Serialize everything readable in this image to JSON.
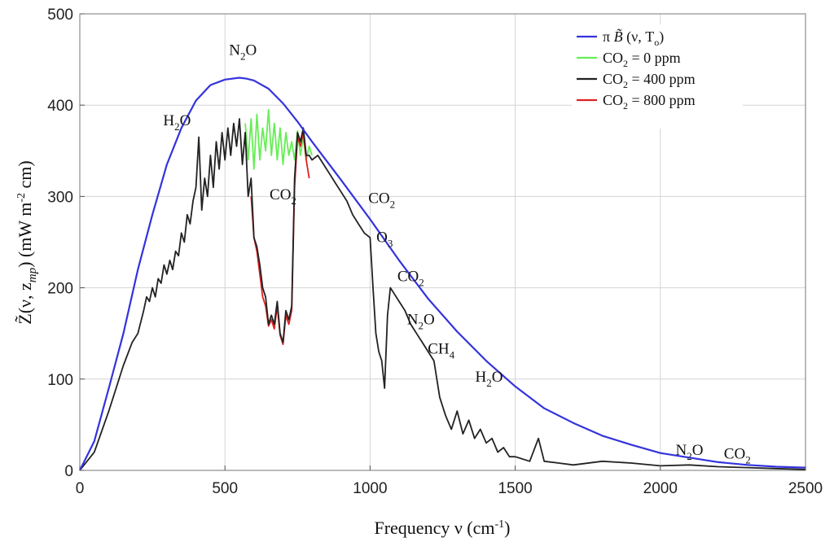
{
  "chart_data": {
    "type": "line",
    "xlabel_main": "Frequency ν (cm",
    "xlabel_sup": "-1",
    "xlabel_close": ")",
    "ylabel": "Z̃(ν, z_mp) (mW m⁻² cm)",
    "ylabel_parts": {
      "z": "Z̃(ν, z",
      "sub": "mp",
      "rest": ") (mW m",
      "sup": "-2",
      "end": " cm)"
    },
    "xlim": [
      0,
      2500
    ],
    "ylim": [
      0,
      500
    ],
    "xticks": [
      0,
      500,
      1000,
      1500,
      2000,
      2500
    ],
    "yticks": [
      0,
      100,
      200,
      300,
      400,
      500
    ],
    "colors": {
      "planck": "#3333dd",
      "co2_0": "#66ee55",
      "co2_400": "#222222",
      "co2_800": "#dd2222"
    },
    "legend": {
      "position": "top-right",
      "entries": [
        {
          "key": "planck",
          "label_a": "π ",
          "label_b": "B̃",
          "label_c": " (ν, T",
          "label_sub": "o",
          "label_d": ")"
        },
        {
          "key": "co2_0",
          "label_a": "CO",
          "label_sub": "2",
          "label_d": " = 0 ppm"
        },
        {
          "key": "co2_400",
          "label_a": "CO",
          "label_sub": "2",
          "label_d": " = 400 ppm"
        },
        {
          "key": "co2_800",
          "label_a": "CO",
          "label_sub": "2",
          "label_d": " = 800 ppm"
        }
      ]
    },
    "annotations": [
      {
        "base": "N",
        "sub": "2",
        "tail": "O",
        "x": 562,
        "y": 455
      },
      {
        "base": "H",
        "sub": "2",
        "tail": "O",
        "x": 335,
        "y": 378
      },
      {
        "base": "CO",
        "sub": "2",
        "tail": "",
        "x": 700,
        "y": 297
      },
      {
        "base": "CO",
        "sub": "2",
        "tail": "",
        "x": 1040,
        "y": 293
      },
      {
        "base": "O",
        "sub": "3",
        "tail": "",
        "x": 1050,
        "y": 250
      },
      {
        "base": "CO",
        "sub": "2",
        "tail": "",
        "x": 1140,
        "y": 207
      },
      {
        "base": "N",
        "sub": "2",
        "tail": "O",
        "x": 1175,
        "y": 160
      },
      {
        "base": "CH",
        "sub": "4",
        "tail": "",
        "x": 1245,
        "y": 128
      },
      {
        "base": "H",
        "sub": "2",
        "tail": "O",
        "x": 1410,
        "y": 97
      },
      {
        "base": "N",
        "sub": "2",
        "tail": "O",
        "x": 2100,
        "y": 17
      },
      {
        "base": "CO",
        "sub": "2",
        "tail": "",
        "x": 2265,
        "y": 13
      }
    ],
    "series": [
      {
        "name": "Planck π B̃(ν, T₀)",
        "key": "planck",
        "x": [
          0,
          50,
          100,
          150,
          200,
          250,
          300,
          350,
          400,
          450,
          500,
          550,
          575,
          600,
          650,
          700,
          750,
          800,
          900,
          1000,
          1100,
          1200,
          1300,
          1400,
          1500,
          1600,
          1700,
          1800,
          1900,
          2000,
          2100,
          2200,
          2300,
          2400,
          2500
        ],
        "y": [
          0,
          32,
          90,
          150,
          220,
          280,
          335,
          375,
          405,
          422,
          428,
          430,
          429,
          427,
          418,
          402,
          382,
          360,
          318,
          275,
          230,
          188,
          152,
          120,
          92,
          68,
          52,
          38,
          28,
          19,
          14,
          9,
          6,
          4,
          3
        ]
      },
      {
        "name": "CO2 = 400 ppm",
        "key": "co2_400",
        "x": [
          0,
          50,
          100,
          150,
          180,
          200,
          220,
          230,
          240,
          250,
          260,
          270,
          280,
          290,
          300,
          310,
          320,
          330,
          340,
          350,
          360,
          370,
          380,
          390,
          400,
          410,
          420,
          430,
          440,
          450,
          460,
          470,
          480,
          490,
          500,
          510,
          520,
          530,
          540,
          550,
          560,
          570,
          580,
          590,
          600,
          610,
          620,
          630,
          640,
          650,
          660,
          670,
          680,
          690,
          700,
          710,
          720,
          730,
          740,
          750,
          760,
          770,
          780,
          790,
          800,
          820,
          840,
          860,
          880,
          900,
          920,
          940,
          960,
          980,
          1000,
          1010,
          1020,
          1030,
          1040,
          1050,
          1060,
          1070,
          1080,
          1100,
          1120,
          1140,
          1160,
          1180,
          1200,
          1220,
          1240,
          1260,
          1280,
          1300,
          1320,
          1340,
          1360,
          1380,
          1400,
          1420,
          1440,
          1460,
          1480,
          1500,
          1550,
          1580,
          1600,
          1650,
          1700,
          1800,
          1900,
          2000,
          2100,
          2200,
          2300,
          2400,
          2500
        ],
        "y": [
          0,
          20,
          65,
          115,
          140,
          150,
          175,
          190,
          185,
          200,
          190,
          210,
          205,
          225,
          215,
          230,
          220,
          240,
          235,
          260,
          250,
          280,
          270,
          295,
          310,
          365,
          285,
          320,
          300,
          345,
          310,
          360,
          330,
          370,
          340,
          375,
          345,
          380,
          355,
          385,
          335,
          370,
          300,
          320,
          255,
          245,
          225,
          200,
          190,
          160,
          170,
          160,
          185,
          150,
          140,
          175,
          165,
          180,
          320,
          370,
          360,
          375,
          345,
          345,
          340,
          345,
          335,
          325,
          315,
          305,
          295,
          280,
          270,
          260,
          255,
          200,
          150,
          130,
          120,
          90,
          170,
          200,
          195,
          185,
          175,
          160,
          150,
          140,
          130,
          120,
          80,
          60,
          45,
          65,
          40,
          55,
          35,
          45,
          30,
          35,
          20,
          25,
          15,
          15,
          10,
          35,
          10,
          8,
          6,
          10,
          8,
          5,
          6,
          4,
          3,
          2,
          1
        ]
      },
      {
        "name": "CO2 = 0 ppm",
        "key": "co2_0",
        "x": [
          570,
          580,
          590,
          600,
          610,
          620,
          630,
          640,
          650,
          660,
          670,
          680,
          690,
          700,
          710,
          720,
          730,
          740,
          750,
          760,
          770,
          780,
          790,
          800
        ],
        "y": [
          380,
          340,
          385,
          330,
          390,
          340,
          375,
          350,
          395,
          345,
          380,
          340,
          375,
          335,
          370,
          345,
          360,
          340,
          372,
          345,
          365,
          340,
          355,
          345
        ]
      },
      {
        "name": "CO2 = 800 ppm",
        "key": "co2_800",
        "x": [
          590,
          600,
          610,
          620,
          630,
          640,
          650,
          660,
          670,
          680,
          690,
          700,
          710,
          720,
          730,
          740,
          750,
          760,
          770,
          780,
          790
        ],
        "y": [
          300,
          255,
          240,
          215,
          190,
          180,
          158,
          165,
          155,
          180,
          148,
          138,
          170,
          160,
          175,
          310,
          365,
          355,
          370,
          340,
          320
        ]
      }
    ]
  }
}
